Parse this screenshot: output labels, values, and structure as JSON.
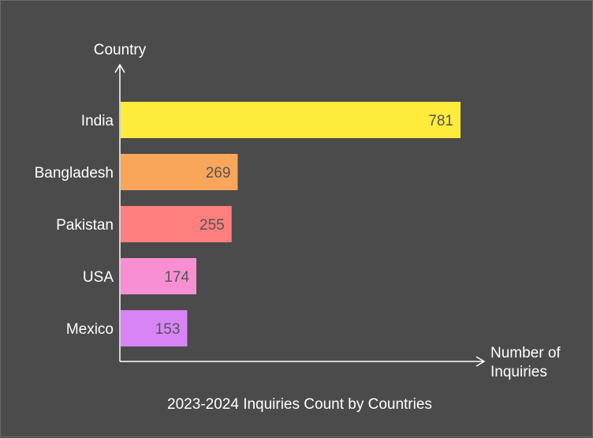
{
  "chart_data": {
    "type": "bar",
    "orientation": "horizontal",
    "title": "2023-2024 Inquiries Count by Countries",
    "ylabel": "Country",
    "xlabel_lines": [
      "Number of",
      "Inquiries"
    ],
    "categories": [
      "India",
      "Bangladesh",
      "Pakistan",
      "USA",
      "Mexico"
    ],
    "values": [
      781,
      269,
      255,
      174,
      153
    ],
    "colors": [
      "#ffeb3b",
      "#f9a65a",
      "#ff7f7f",
      "#f78fd2",
      "#d884f7"
    ],
    "value_label_color": "#555555",
    "axis_color": "#ffffff",
    "background": "#4b4b4b",
    "grid": false,
    "legend": "none"
  }
}
